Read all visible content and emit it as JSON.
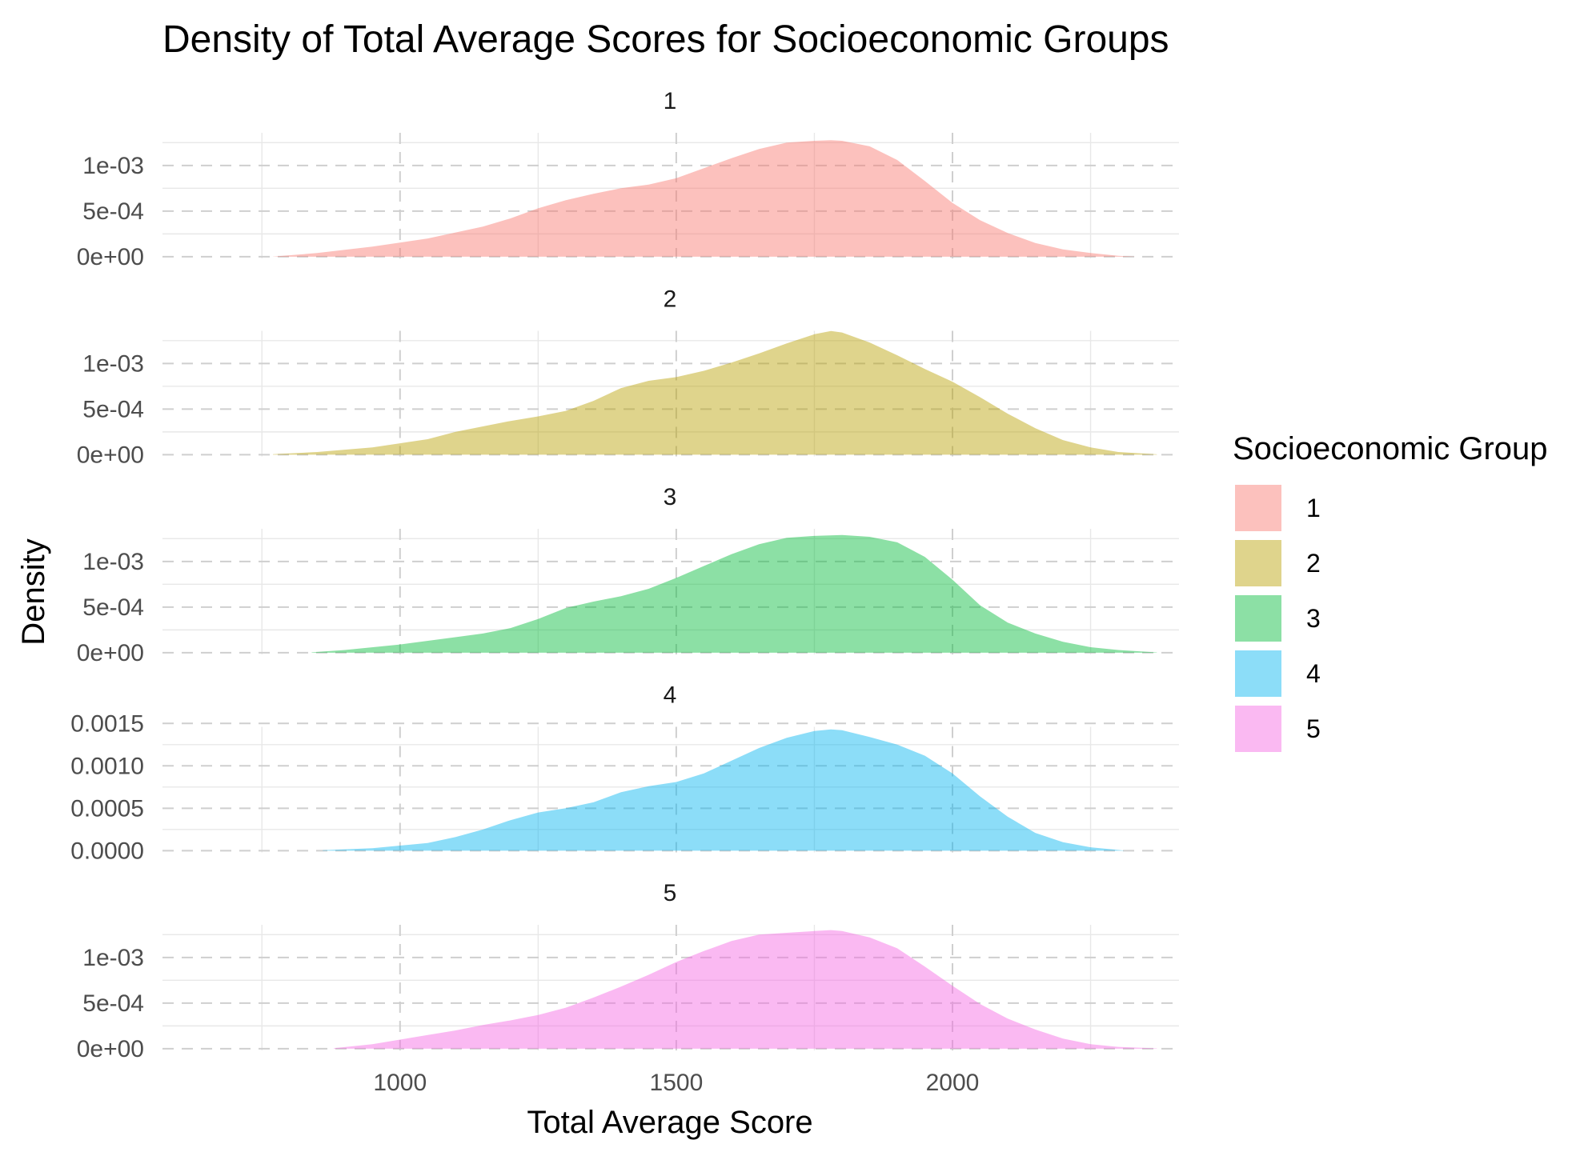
{
  "chart_data": {
    "type": "area",
    "title": "Density of Total Average Scores for Socioeconomic Groups",
    "xlabel": "Total Average Score",
    "ylabel": "Density",
    "xlim": [
      570,
      2410
    ],
    "x_ticks": [
      1000,
      1500,
      2000
    ],
    "x_tick_labels": [
      "1000",
      "1500",
      "2000"
    ],
    "grid": true,
    "legend": {
      "title": "Socioeconomic Group",
      "placement": "right",
      "entries": [
        "1",
        "2",
        "3",
        "4",
        "5"
      ]
    },
    "panels": [
      {
        "name": "1",
        "color": "#F8766D",
        "ylim": [
          -1.85e-05,
          0.001358
        ],
        "y_ticks": [
          0,
          0.0005,
          0.001
        ],
        "y_tick_labels": [
          "0e+00",
          "5e-04",
          "1e-03"
        ],
        "x": [
          770,
          850,
          950,
          1050,
          1150,
          1200,
          1250,
          1300,
          1350,
          1400,
          1450,
          1500,
          1550,
          1600,
          1650,
          1700,
          1750,
          1780,
          1800,
          1850,
          1900,
          1950,
          2000,
          2050,
          2100,
          2150,
          2200,
          2250,
          2300,
          2330
        ],
        "y": [
          2e-06,
          4e-05,
          0.00011,
          0.0002,
          0.00033,
          0.00042,
          0.00053,
          0.00062,
          0.00069,
          0.00075,
          0.00079,
          0.00086,
          0.00097,
          0.00108,
          0.00118,
          0.00125,
          0.00127,
          0.001277,
          0.00127,
          0.00121,
          0.00106,
          0.00083,
          0.00059,
          0.0004,
          0.00026,
          0.00015,
          8e-05,
          4e-05,
          1e-05,
          2e-06
        ]
      },
      {
        "name": "2",
        "color": "#B79F00",
        "ylim": [
          -1.85e-05,
          0.001358
        ],
        "y_ticks": [
          0,
          0.0005,
          0.001
        ],
        "y_tick_labels": [
          "0e+00",
          "5e-04",
          "1e-03"
        ],
        "x": [
          770,
          850,
          950,
          1050,
          1100,
          1150,
          1200,
          1250,
          1300,
          1350,
          1400,
          1450,
          1500,
          1550,
          1600,
          1650,
          1700,
          1750,
          1780,
          1800,
          1850,
          1900,
          1950,
          2000,
          2050,
          2100,
          2150,
          2200,
          2250,
          2300,
          2370
        ],
        "y": [
          5e-06,
          3e-05,
          8e-05,
          0.00017,
          0.00025,
          0.00031,
          0.00037,
          0.00042,
          0.00048,
          0.00059,
          0.00073,
          0.00081,
          0.00085,
          0.00092,
          0.00101,
          0.00111,
          0.00122,
          0.00132,
          0.001355,
          0.00134,
          0.00123,
          0.00109,
          0.00094,
          0.0008,
          0.00063,
          0.00045,
          0.00029,
          0.00016,
          8e-05,
          3e-05,
          4e-06
        ]
      },
      {
        "name": "3",
        "color": "#00BA38",
        "ylim": [
          -1.85e-05,
          0.001358
        ],
        "y_ticks": [
          0,
          0.0005,
          0.001
        ],
        "y_tick_labels": [
          "0e+00",
          "5e-04",
          "1e-03"
        ],
        "x": [
          840,
          900,
          1000,
          1100,
          1150,
          1200,
          1250,
          1300,
          1350,
          1400,
          1450,
          1500,
          1550,
          1600,
          1650,
          1700,
          1750,
          1800,
          1850,
          1900,
          1950,
          2000,
          2050,
          2100,
          2150,
          2200,
          2250,
          2300,
          2370
        ],
        "y": [
          4e-06,
          3e-05,
          9e-05,
          0.00017,
          0.00021,
          0.00027,
          0.00037,
          0.00049,
          0.00056,
          0.00062,
          0.0007,
          0.00082,
          0.00095,
          0.00108,
          0.00119,
          0.00126,
          0.00128,
          0.00129,
          0.00127,
          0.00121,
          0.00105,
          0.0008,
          0.00052,
          0.00033,
          0.00021,
          0.00012,
          6e-05,
          3e-05,
          3e-06
        ]
      },
      {
        "name": "4",
        "color": "#00B4F0",
        "ylim": [
          -2e-05,
          0.00146
        ],
        "y_ticks": [
          0,
          0.0005,
          0.001,
          0.0015
        ],
        "y_tick_labels": [
          "0.0000",
          "0.0005",
          "0.0010",
          "0.0015"
        ],
        "x": [
          860,
          950,
          1050,
          1100,
          1150,
          1200,
          1250,
          1300,
          1350,
          1400,
          1450,
          1500,
          1550,
          1600,
          1650,
          1700,
          1750,
          1780,
          1800,
          1850,
          1900,
          1950,
          2000,
          2050,
          2100,
          2150,
          2200,
          2250,
          2310
        ],
        "y": [
          5e-06,
          3e-05,
          9e-05,
          0.00016,
          0.00025,
          0.00036,
          0.00045,
          0.0005,
          0.00057,
          0.00069,
          0.00076,
          0.00081,
          0.00091,
          0.00106,
          0.00121,
          0.00133,
          0.00141,
          0.00143,
          0.00142,
          0.00134,
          0.00125,
          0.00112,
          0.00091,
          0.00064,
          0.0004,
          0.00021,
          0.0001,
          4e-05,
          3e-06
        ]
      },
      {
        "name": "5",
        "color": "#F564E3",
        "ylim": [
          -1.85e-05,
          0.001358
        ],
        "y_ticks": [
          0,
          0.0005,
          0.001
        ],
        "y_tick_labels": [
          "0e+00",
          "5e-04",
          "1e-03"
        ],
        "x": [
          880,
          950,
          1000,
          1050,
          1100,
          1150,
          1200,
          1250,
          1300,
          1350,
          1400,
          1450,
          1500,
          1550,
          1600,
          1650,
          1700,
          1750,
          1780,
          1800,
          1850,
          1900,
          1950,
          2000,
          2050,
          2100,
          2150,
          2200,
          2250,
          2300,
          2370
        ],
        "y": [
          5e-06,
          5e-05,
          0.0001,
          0.00015,
          0.0002,
          0.00026,
          0.00031,
          0.00037,
          0.00045,
          0.00056,
          0.00068,
          0.00081,
          0.00095,
          0.00107,
          0.00118,
          0.00125,
          0.00127,
          0.00129,
          0.0013,
          0.00129,
          0.00122,
          0.0011,
          0.0009,
          0.00069,
          0.00049,
          0.00033,
          0.00021,
          0.00011,
          5e-05,
          2e-05,
          3e-06
        ]
      }
    ]
  }
}
